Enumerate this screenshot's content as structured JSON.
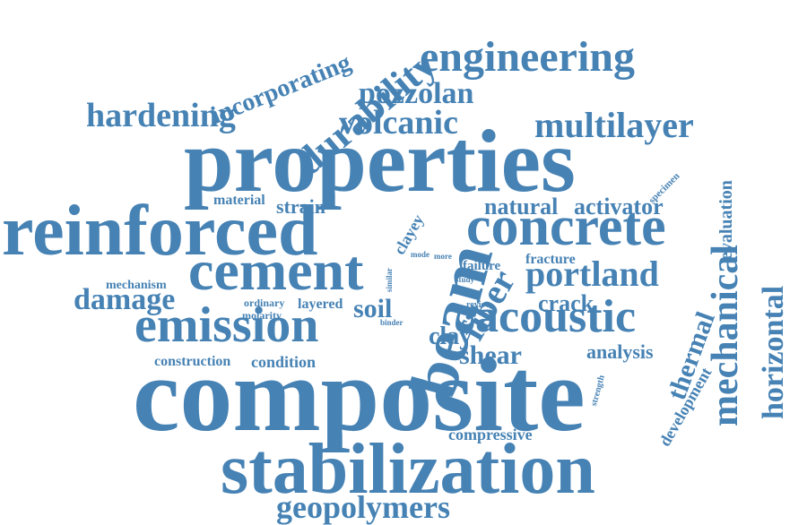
{
  "theme": {
    "word_color": "#4682b4",
    "background": "#ffffff"
  },
  "words": [
    "composite",
    "properties",
    "reinforced",
    "stabilization",
    "beam",
    "concrete",
    "cement",
    "emission",
    "acoustic",
    "engineering",
    "durability",
    "mechanical",
    "horizontal",
    "hardening",
    "multilayer",
    "volcanic",
    "pozzolan",
    "portland",
    "fiber",
    "geopolymers",
    "thermal",
    "incorporating",
    "damage",
    "shear",
    "soil",
    "clay",
    "analysis",
    "natural",
    "activator",
    "crack",
    "evaluation",
    "development",
    "strain",
    "material",
    "clayey",
    "fracture",
    "failure",
    "layered",
    "condition",
    "construction",
    "compressive",
    "mechanism",
    "ordinary",
    "molarity",
    "specimen",
    "similar",
    "study",
    "review",
    "binder",
    "mode",
    "more",
    "strength"
  ]
}
